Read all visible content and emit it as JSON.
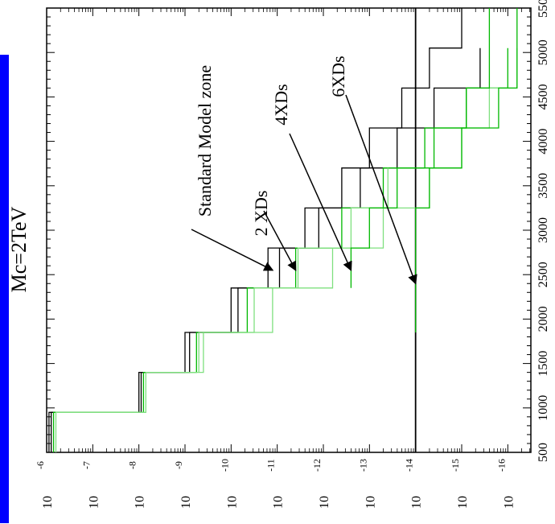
{
  "chart_data": {
    "type": "line",
    "orientation": "rotated-90-ccw",
    "title": "Mc=2TeV",
    "x_ticks": [
      "500",
      "1000",
      "1500",
      "2000",
      "2500",
      "3000",
      "3500",
      "4000",
      "4500",
      "5000",
      "550"
    ],
    "y_tick_mantissa": "10",
    "y_tick_exponents": [
      "-6",
      "-7",
      "-8",
      "-9",
      "-10",
      "-11",
      "-12",
      "-13",
      "-14",
      "-15",
      "-16"
    ],
    "xlim": [
      500,
      5500
    ],
    "ylim_log10": [
      -6,
      -16.5
    ],
    "reference_line_log10": -14,
    "colors": {
      "standard_model": "#000000",
      "xd_dark": "#00b800",
      "xd_light": "#7fe07f",
      "reference": "#000000",
      "blue_bar": "#0000ff"
    },
    "annotations": [
      {
        "text": "Standard Model zone",
        "arrow_to": {
          "x": 2550,
          "y_log10": -10.9
        }
      },
      {
        "text": "2 XDs",
        "arrow_to": {
          "x": 2550,
          "y_log10": -11.4
        }
      },
      {
        "text": "4XDs",
        "arrow_to": {
          "x": 2550,
          "y_log10": -12.6
        }
      },
      {
        "text": "6XDs",
        "arrow_to": {
          "x": 2400,
          "y_log10": -14.0
        }
      }
    ],
    "series": [
      {
        "color_key": "standard_model",
        "x": [
          500,
          950,
          950,
          1400,
          1400,
          1850,
          1850,
          2350,
          2350,
          2800,
          2800,
          3250,
          3250,
          3700,
          3700,
          4150,
          4150,
          4600,
          4600,
          5050,
          5050,
          5500
        ],
        "y_log10": [
          -6.05,
          -6.05,
          -8.0,
          -8.0,
          -9.0,
          -9.0,
          -10.0,
          -10.0,
          -10.8,
          -10.8,
          -11.6,
          -11.6,
          -12.4,
          -12.4,
          -13.0,
          -13.0,
          -13.7,
          -13.7,
          -14.3,
          -14.3,
          -15.0,
          -15.0
        ]
      },
      {
        "color_key": "standard_model",
        "x": [
          500,
          950,
          950,
          1400,
          1400,
          1850,
          1850,
          2350,
          2350,
          2800,
          2800,
          3250,
          3250,
          3700,
          3700,
          4150,
          4150,
          4600,
          4600,
          5050
        ],
        "y_log10": [
          -6.1,
          -6.1,
          -8.05,
          -8.05,
          -9.1,
          -9.1,
          -10.15,
          -10.15,
          -11.05,
          -11.05,
          -11.9,
          -11.9,
          -12.8,
          -12.8,
          -13.6,
          -13.6,
          -14.4,
          -14.4,
          -15.4,
          -15.4
        ]
      },
      {
        "color_key": "xd_dark",
        "x": [
          500,
          950,
          950,
          1400,
          1400,
          1850,
          1850,
          2350,
          2350,
          2800,
          2800,
          3250,
          3250,
          3700,
          3700,
          4150,
          4150,
          4600,
          4600,
          5050
        ],
        "y_log10": [
          -6.15,
          -6.15,
          -8.1,
          -8.1,
          -9.25,
          -9.25,
          -10.35,
          -10.35,
          -11.4,
          -11.4,
          -12.4,
          -12.4,
          -13.3,
          -13.3,
          -14.2,
          -14.2,
          -15.1,
          -15.1,
          -16.0,
          -16.0
        ]
      },
      {
        "color_key": "xd_light",
        "x": [
          500,
          950,
          950,
          1400,
          1400,
          1850,
          1850,
          2350,
          2350,
          2800,
          2800,
          3250,
          3250,
          3700
        ],
        "y_log10": [
          -6.2,
          -6.2,
          -8.15,
          -8.15,
          -9.4,
          -9.4,
          -10.5,
          -10.5,
          -11.45,
          -11.45,
          -12.6,
          -12.6,
          -13.4,
          -13.4
        ]
      },
      {
        "color_key": "xd_light",
        "x": [
          1400,
          1850,
          1850,
          2350,
          2350,
          2800,
          2800,
          3250,
          3250,
          3700,
          3700,
          4150,
          4150,
          4600,
          4600,
          5050
        ],
        "y_log10": [
          -9.3,
          -9.3,
          -10.9,
          -10.9,
          -12.2,
          -12.2,
          -13.3,
          -13.3,
          -14.3,
          -14.3,
          -15.0,
          -15.0,
          -15.6,
          -15.6,
          -16.2,
          -16.2
        ]
      },
      {
        "color_key": "xd_dark",
        "x": [
          2350,
          2800,
          2800,
          3250,
          3250,
          3700,
          3700,
          4150,
          4150,
          4600,
          4600,
          5500
        ],
        "y_log10": [
          -12.6,
          -12.6,
          -13.0,
          -13.0,
          -13.6,
          -13.6,
          -14.4,
          -14.4,
          -15.1,
          -15.1,
          -15.6,
          -15.6
        ]
      },
      {
        "color_key": "xd_dark",
        "x": [
          1850,
          2350,
          2350,
          2800,
          2800,
          3250,
          3250,
          3700,
          3700,
          4150,
          4150,
          4600,
          4600,
          5500
        ],
        "y_log10": [
          -14.0,
          -14.0,
          -14.0,
          -14.0,
          -14.0,
          -14.0,
          -14.3,
          -14.3,
          -15.0,
          -15.0,
          -15.8,
          -15.8,
          -16.2,
          -16.2
        ]
      }
    ]
  }
}
